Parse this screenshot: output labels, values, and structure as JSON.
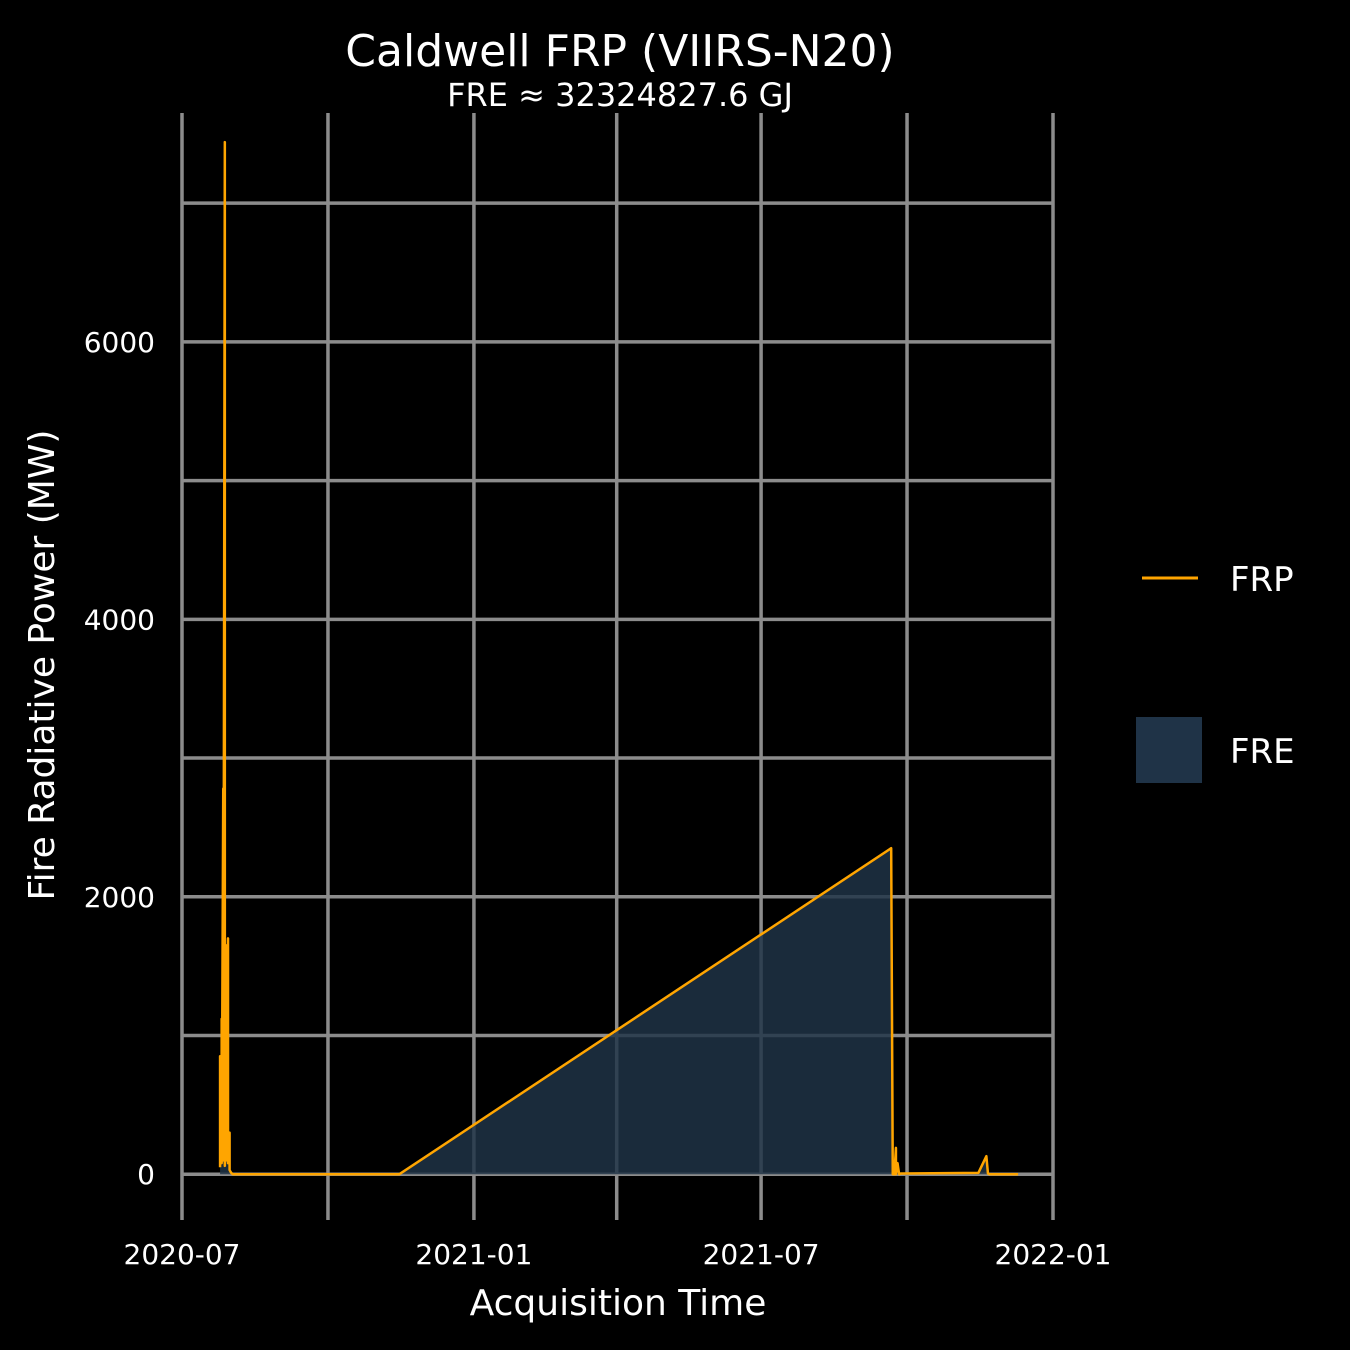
{
  "chart_data": {
    "type": "line",
    "title": "Caldwell FRP (VIIRS-N20)",
    "subtitle": "FRE ≈ 32324827.6 GJ",
    "xlabel": "Acquisition Time",
    "ylabel": "Fire Radiative Power (MW)",
    "x_ticks": [
      "2020-07",
      "2021-01",
      "2021-07",
      "2022-01"
    ],
    "y_ticks": [
      0,
      2000,
      4000,
      6000
    ],
    "xlim": [
      "2020-07-01",
      "2022-01-01"
    ],
    "ylim": [
      -330,
      7650
    ],
    "grid": true,
    "legend_position": "right",
    "series": [
      {
        "name": "FRP",
        "color": "#ffa500",
        "x": [
          "2020-07-25",
          "2020-07-25",
          "2020-07-26",
          "2020-07-26",
          "2020-07-26",
          "2020-07-27",
          "2020-07-27",
          "2020-07-28",
          "2020-07-28",
          "2020-07-28",
          "2020-07-29",
          "2020-07-29",
          "2020-07-30",
          "2020-07-30",
          "2020-07-31",
          "2020-07-31",
          "2020-08-01",
          "2020-08-02",
          "2020-11-15",
          "2021-09-21",
          "2021-09-22",
          "2021-09-23",
          "2021-09-24",
          "2021-09-24",
          "2021-09-25",
          "2021-09-26",
          "2021-09-27",
          "2021-09-28",
          "2021-11-15",
          "2021-11-20",
          "2021-11-21",
          "2021-11-22",
          "2021-12-10"
        ],
        "y": [
          50,
          850,
          100,
          1120,
          80,
          2780,
          100,
          7440,
          400,
          60,
          1650,
          100,
          1700,
          80,
          300,
          30,
          10,
          0,
          0,
          2350,
          0,
          0,
          190,
          0,
          80,
          0,
          5,
          5,
          10,
          130,
          5,
          0,
          0
        ]
      },
      {
        "name": "FRE",
        "color": "#1f3347"
      }
    ]
  }
}
